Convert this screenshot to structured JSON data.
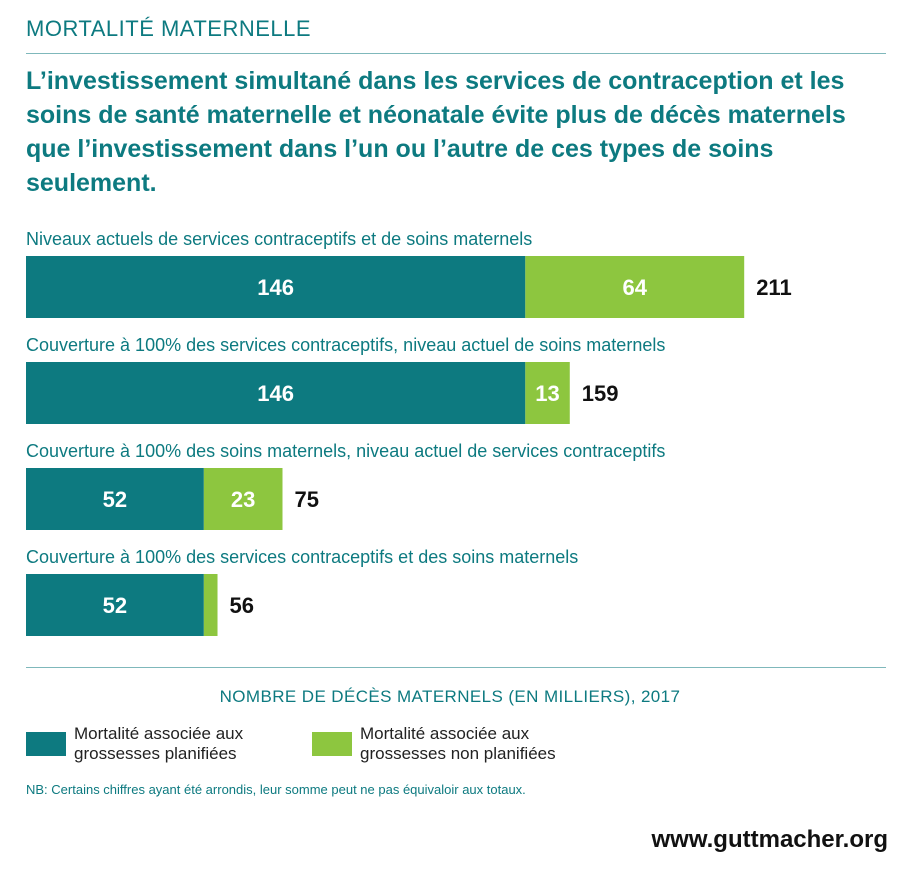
{
  "header": {
    "section_label": "MORTALITÉ MATERNELLE",
    "title": "L’investissement simultané dans les services de contraception et les soins de santé maternelle et néonatale évite plus de décès maternels que l’investissement dans l’un ou l’autre de ces types de soins seulement."
  },
  "colors": {
    "teal": "#0d7a80",
    "green": "#8dc63f"
  },
  "chart_data": {
    "type": "bar",
    "orientation": "horizontal",
    "stacked": true,
    "categories": [
      "Niveaux actuels de services contraceptifs et de soins maternels",
      "Couverture à 100% des services contraceptifs, niveau actuel de soins maternels",
      "Couverture à 100% des soins maternels, niveau actuel de services contraceptifs",
      "Couverture à 100% des services contraceptifs et des soins maternels"
    ],
    "series": [
      {
        "name": "Mortalité associée aux grossesses planifiées",
        "color": "#0d7a80",
        "values": [
          146,
          146,
          52,
          52
        ],
        "labels": [
          "146",
          "146",
          "52",
          "52"
        ]
      },
      {
        "name": "Mortalité associée aux grossesses non planifiées",
        "color": "#8dc63f",
        "values": [
          64,
          13,
          23,
          4
        ],
        "labels": [
          "64",
          "13",
          "23",
          ""
        ]
      }
    ],
    "totals": [
      "211",
      "159",
      "75",
      "56"
    ],
    "xlabel": "NOMBRE DE DÉCÈS MATERNELS (EN MILLIERS), 2017",
    "xlim": [
      0,
      270
    ],
    "grid": false,
    "legend": "bottom"
  },
  "footer": {
    "note": "NB: Certains chiffres ayant été arrondis, leur somme peut ne pas équivaloir aux totaux.",
    "website": "www.guttmacher.org"
  }
}
